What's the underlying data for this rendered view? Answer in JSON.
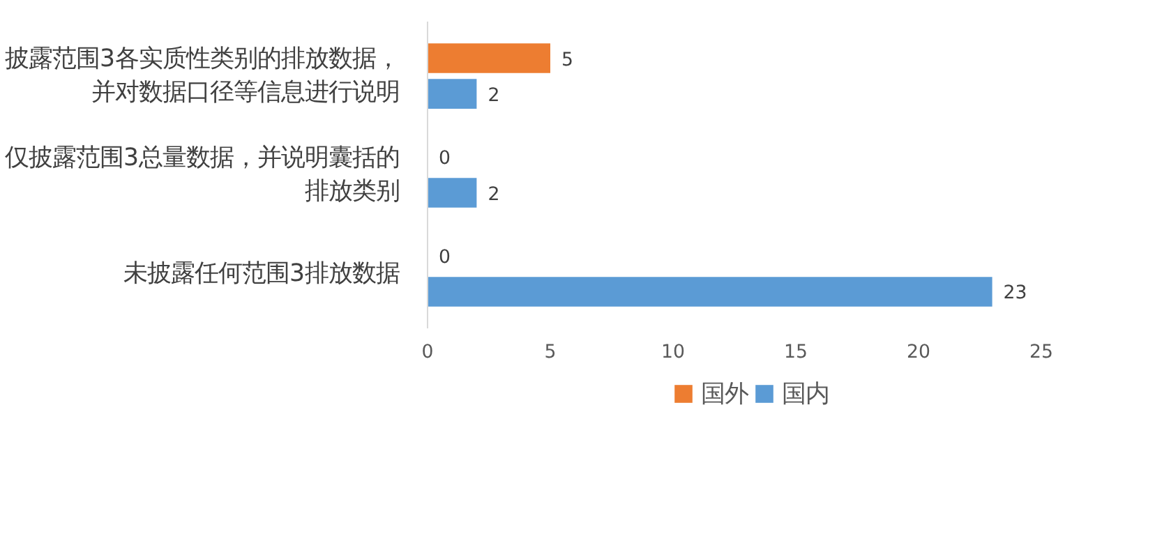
{
  "chart_data": {
    "type": "bar",
    "orientation": "horizontal",
    "categories": [
      "披露范围3各实质性类别的排放数据，并对数据口径等信息进行说明",
      "仅披露范围3总量数据，并说明囊括的排放类别",
      "未披露任何范围3排放数据"
    ],
    "series": [
      {
        "name": "国外",
        "color": "#ed7d31",
        "values": [
          5,
          0,
          0
        ]
      },
      {
        "name": "国内",
        "color": "#5b9bd5",
        "values": [
          2,
          2,
          23
        ]
      }
    ],
    "xlim": [
      0,
      25
    ],
    "xticks": [
      0,
      5,
      10,
      15,
      20,
      25
    ],
    "data_labels": true,
    "legend": "bottom"
  }
}
